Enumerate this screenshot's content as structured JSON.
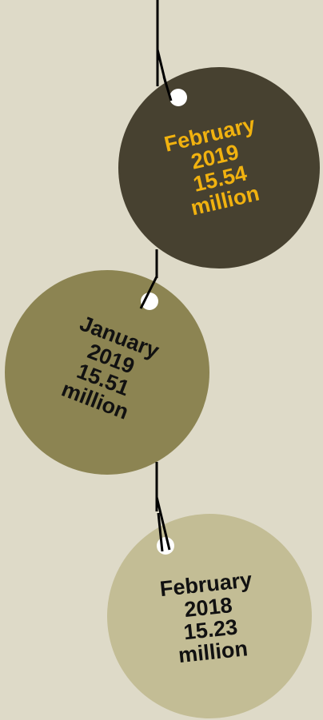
{
  "colors": {
    "background": "#dedac8",
    "disc_dark": "#474130",
    "disc_mid": "#8c8452",
    "disc_light": "#c3bd95",
    "string": "#000000",
    "hole": "#ffffff",
    "text_dark_disc": "#f1b20f",
    "text_other": "#111111"
  },
  "tags": [
    {
      "month": "February",
      "year": "2019",
      "value": "15.54",
      "unit": "million"
    },
    {
      "month": "January",
      "year": "2019",
      "value": "15.51",
      "unit": "million"
    },
    {
      "month": "February",
      "year": "2018",
      "value": "15.23",
      "unit": "million"
    }
  ]
}
